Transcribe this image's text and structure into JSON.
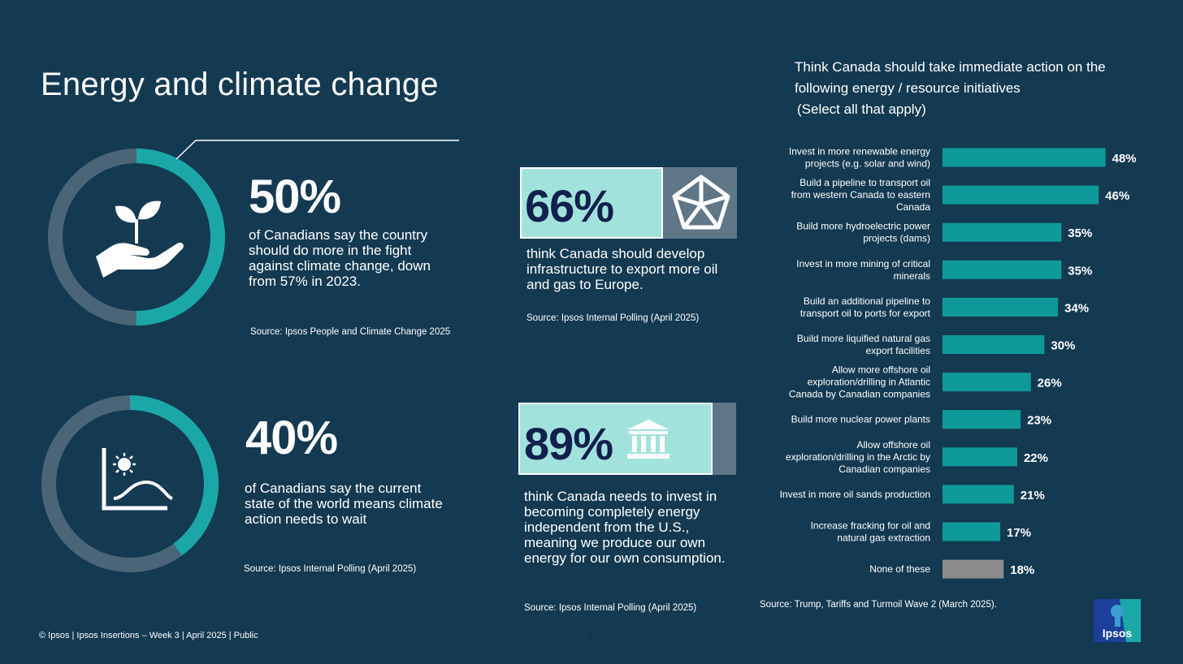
{
  "page": {
    "title": "Energy and climate change",
    "footer": "© Ipsos | Ipsos Insertions – Week 3 | April  2025 | Public",
    "page_number": "3",
    "logo_text": "Ipsos"
  },
  "stats": {
    "climate_fight": {
      "value": 50,
      "label": "50%",
      "text": "of Canadians say the country should do more in the fight against climate change, down from 57% in 2023.",
      "source": "Source:  Ipsos People and Climate Change 2025",
      "icon": "hand-plant-icon"
    },
    "climate_wait": {
      "value": 40,
      "label": "40%",
      "text": "of Canadians say the current state of the world means climate action needs to wait",
      "source": "Source:  Ipsos Internal Polling (April 2025)",
      "icon": "virus-graph-icon"
    },
    "export_europe": {
      "value": 66,
      "label": "66%",
      "text": "think Canada should develop infrastructure to export more oil and gas to Europe.",
      "source": "Source:  Ipsos Internal Polling (April 2025)",
      "icon": "oil-rig-icon"
    },
    "energy_independent": {
      "value": 89,
      "label": "89%",
      "text": "think Canada needs to invest in becoming completely energy independent from the U.S., meaning we produce our own energy for our own consumption.",
      "source": "Source:  Ipsos Internal Polling (April 2025)",
      "icon": "government-building-icon"
    }
  },
  "colors": {
    "background": "#143a52",
    "teal": "#1aa7a6",
    "donut_track": "#4a6578",
    "box_fill": "#a1e3dc",
    "box_track": "#5f7686",
    "box_text": "#12204e",
    "none_bar": "#8c8c8c"
  },
  "chart_data": {
    "type": "bar",
    "orientation": "horizontal",
    "title": "Think Canada should take immediate action on the following energy / resource initiatives",
    "subtitle": "(Select all that apply)",
    "categories": [
      "Invest in more renewable energy projects (e.g. solar and wind)",
      "Build a pipeline to transport oil from western Canada to eastern Canada",
      "Build more hydroelectric power projects (dams)",
      "Invest in more mining of critical minerals",
      "Build an additional pipeline to transport oil to ports for export",
      "Build more liquified natural gas export facilities",
      "Allow more offshore oil exploration/drilling in Atlantic Canada by Canadian companies",
      "Build more nuclear power plants",
      "Allow offshore oil exploration/drilling in the Arctic by Canadian companies",
      "Invest in more oil sands production",
      "Increase fracking for oil and natural gas extraction",
      "None of these"
    ],
    "values": [
      48,
      46,
      35,
      35,
      34,
      30,
      26,
      23,
      22,
      21,
      17,
      18
    ],
    "value_labels": [
      "48%",
      "46%",
      "35%",
      "35%",
      "34%",
      "30%",
      "26%",
      "23%",
      "22%",
      "21%",
      "17%",
      "18%"
    ],
    "label_lines": [
      [
        "Invest in more renewable energy",
        "projects (e.g. solar and wind)"
      ],
      [
        "Build a pipeline to transport oil",
        "from western Canada to eastern",
        "Canada"
      ],
      [
        "Build more hydroelectric power",
        "projects (dams)"
      ],
      [
        "Invest in more mining of critical",
        "minerals"
      ],
      [
        "Build an additional pipeline to",
        "transport oil to ports for export"
      ],
      [
        "Build more liquified natural gas",
        "export facilities"
      ],
      [
        "Allow more offshore oil",
        "exploration/drilling in Atlantic",
        "Canada by Canadian companies"
      ],
      [
        "Build more nuclear power plants"
      ],
      [
        "Allow offshore oil",
        "exploration/drilling in the Arctic by",
        "Canadian companies"
      ],
      [
        "Invest in more oil sands production"
      ],
      [
        "Increase fracking for oil and",
        "natural gas extraction"
      ],
      [
        "None of these"
      ]
    ],
    "source": "Source:  Trump, Tariffs and Turmoil Wave 2 (March 2025).",
    "bar_colors": [
      "#0f9a99",
      "#0f9a99",
      "#0f9a99",
      "#0f9a99",
      "#0f9a99",
      "#0f9a99",
      "#0f9a99",
      "#0f9a99",
      "#0f9a99",
      "#0f9a99",
      "#0f9a99",
      "#8c8c8c"
    ]
  }
}
